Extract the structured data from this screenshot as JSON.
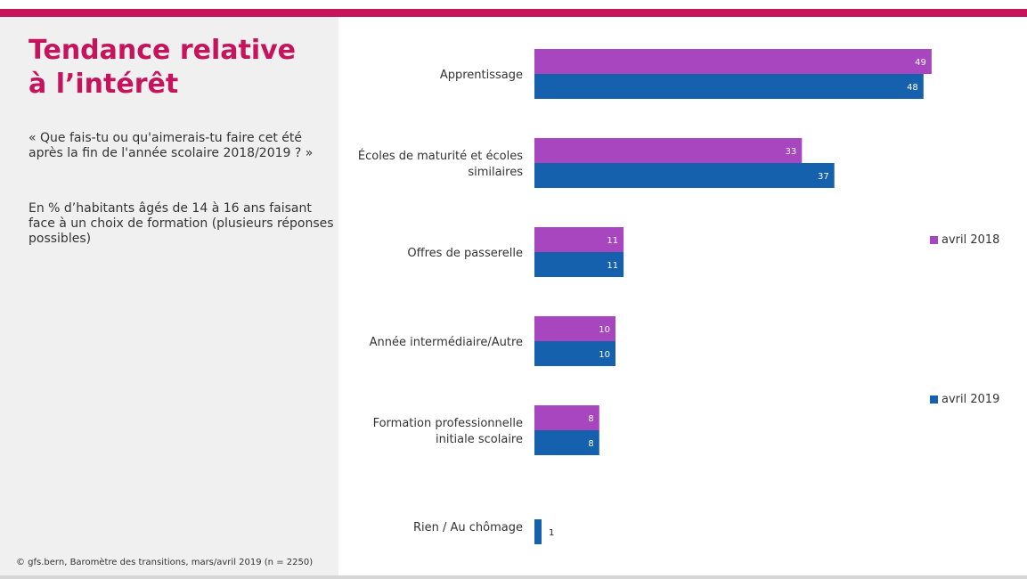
{
  "header": {
    "title": "Tendance relative à l’intérêt",
    "question": "« Que fais-tu ou qu'aimerais-tu faire cet été après la fin de l'année scolaire 2018/2019 ? »",
    "note": "En % d’habitants âgés de 14 à 16 ans faisant face à un choix de formation (plusieurs réponses possibles)",
    "source": "© gfs.bern, Baromètre des transitions, mars/avril 2019 (n = 2250)"
  },
  "colors": {
    "accent": "#c5135c",
    "series_2018": "#a846bf",
    "series_2019": "#1561ad",
    "panel": "#f0f0f0"
  },
  "chart_data": {
    "type": "bar",
    "orientation": "horizontal",
    "categories": [
      "Apprentissage",
      "Écoles de maturité et écoles similaires",
      "Offres de passerelle",
      "Année intermédiaire/Autre",
      "Formation professionnelle initiale scolaire",
      "Rien / Au chômage"
    ],
    "series": [
      {
        "name": "avril 2018",
        "values": [
          49,
          33,
          11,
          10,
          8,
          null
        ]
      },
      {
        "name": "avril 2019",
        "values": [
          48,
          37,
          11,
          10,
          8,
          1
        ]
      }
    ],
    "xlim": [
      0,
      60
    ],
    "grid": false,
    "legend_position": "right"
  }
}
